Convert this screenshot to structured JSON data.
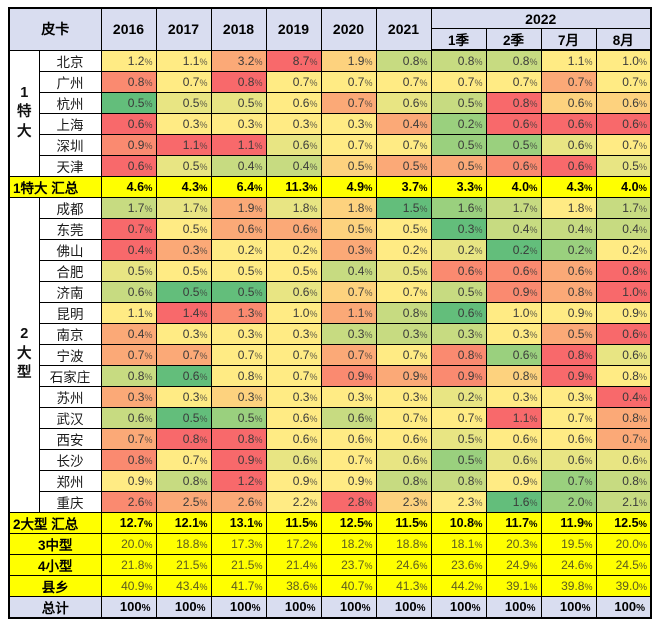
{
  "palette": {
    "r": "#F8696B",
    "o": "#FA8A70",
    "a": "#FBA977",
    "l": "#FDD27E",
    "y": "#FFEB84",
    "t": "#E8E583",
    "u": "#C7DB81",
    "v": "#9AD07E",
    "G": "#63BE7B",
    "summary_bg": "#FFFF00",
    "header_bg": "#D9DDF0",
    "data_text": "#3A3A3A",
    "mid_value_text": "#5C5C20"
  },
  "chart_data": {
    "type": "table",
    "header": {
      "corner": "皮卡",
      "years": [
        "2016",
        "2017",
        "2018",
        "2019",
        "2020",
        "2021"
      ],
      "year_group": "2022",
      "subcols": [
        "1季",
        "2季",
        "7月",
        "8月"
      ]
    },
    "groups": [
      {
        "vertical_label": "1特大",
        "cities": [
          {
            "name": "北京",
            "values": [
              "1.2%",
              "1.1%",
              "3.2%",
              "8.7%",
              "1.9%",
              "0.8%",
              "0.8%",
              "0.8%",
              "1.1%",
              "1.0%"
            ],
            "colors": "yyarluuuyy"
          },
          {
            "name": "广州",
            "values": [
              "0.8%",
              "0.7%",
              "0.8%",
              "0.7%",
              "0.7%",
              "0.7%",
              "0.7%",
              "0.7%",
              "0.7%",
              "0.7%"
            ],
            "colors": "oyryyyyyay"
          },
          {
            "name": "杭州",
            "values": [
              "0.5%",
              "0.5%",
              "0.5%",
              "0.6%",
              "0.7%",
              "0.6%",
              "0.5%",
              "0.8%",
              "0.6%",
              "0.6%"
            ],
            "colors": "Gttyaturll"
          },
          {
            "name": "上海",
            "values": [
              "0.6%",
              "0.3%",
              "0.3%",
              "0.3%",
              "0.3%",
              "0.4%",
              "0.2%",
              "0.6%",
              "0.6%",
              "0.6%"
            ],
            "colors": "ryyyyavrrr"
          },
          {
            "name": "深圳",
            "values": [
              "0.9%",
              "1.1%",
              "1.1%",
              "0.6%",
              "0.7%",
              "0.7%",
              "0.5%",
              "0.5%",
              "0.6%",
              "0.7%"
            ],
            "colors": "orrtyyvvty"
          },
          {
            "name": "天津",
            "values": [
              "0.6%",
              "0.5%",
              "0.4%",
              "0.4%",
              "0.5%",
              "0.5%",
              "0.5%",
              "0.6%",
              "0.6%",
              "0.5%"
            ],
            "colors": "rtuulaaort"
          }
        ],
        "summary": {
          "label": "1特大 汇总",
          "values": [
            "4.6%",
            "4.3%",
            "6.4%",
            "11.3%",
            "4.9%",
            "3.7%",
            "3.3%",
            "4.0%",
            "4.3%",
            "4.0%"
          ]
        }
      },
      {
        "vertical_label": "2大型",
        "cities": [
          {
            "name": "成都",
            "values": [
              "1.7%",
              "1.7%",
              "1.9%",
              "1.8%",
              "1.8%",
              "1.5%",
              "1.6%",
              "1.7%",
              "1.8%",
              "1.7%"
            ],
            "colors": "utatlGvuyu"
          },
          {
            "name": "东莞",
            "values": [
              "0.7%",
              "0.5%",
              "0.6%",
              "0.6%",
              "0.5%",
              "0.5%",
              "0.3%",
              "0.4%",
              "0.4%",
              "0.4%"
            ],
            "colors": "ryaalyGuuu"
          },
          {
            "name": "佛山",
            "values": [
              "0.4%",
              "0.3%",
              "0.2%",
              "0.2%",
              "0.3%",
              "0.2%",
              "0.2%",
              "0.2%",
              "0.2%",
              "0.2%"
            ],
            "colors": "rayyaytGvy"
          },
          {
            "name": "合肥",
            "values": [
              "0.5%",
              "0.5%",
              "0.5%",
              "0.5%",
              "0.4%",
              "0.5%",
              "0.6%",
              "0.6%",
              "0.6%",
              "0.8%"
            ],
            "colors": "tyyyutooar"
          },
          {
            "name": "济南",
            "values": [
              "0.6%",
              "0.5%",
              "0.5%",
              "0.6%",
              "0.7%",
              "0.7%",
              "0.5%",
              "0.9%",
              "0.8%",
              "1.0%"
            ],
            "colors": "uGGtlyuoar"
          },
          {
            "name": "昆明",
            "values": [
              "1.1%",
              "1.4%",
              "1.3%",
              "1.0%",
              "1.1%",
              "0.8%",
              "0.6%",
              "1.0%",
              "0.9%",
              "0.9%"
            ],
            "colors": "yroyauGyyy"
          },
          {
            "name": "南京",
            "values": [
              "0.4%",
              "0.3%",
              "0.3%",
              "0.3%",
              "0.3%",
              "0.3%",
              "0.3%",
              "0.3%",
              "0.5%",
              "0.6%"
            ],
            "colors": "ayyyuuuyar"
          },
          {
            "name": "宁波",
            "values": [
              "0.7%",
              "0.7%",
              "0.7%",
              "0.7%",
              "0.7%",
              "0.7%",
              "0.8%",
              "0.6%",
              "0.8%",
              "0.6%"
            ],
            "colors": "aayyayovrt"
          },
          {
            "name": "石家庄",
            "values": [
              "0.8%",
              "0.6%",
              "0.8%",
              "0.7%",
              "0.9%",
              "0.9%",
              "0.9%",
              "0.8%",
              "0.9%",
              "0.8%"
            ],
            "colors": "uGyyoaolry"
          },
          {
            "name": "苏州",
            "values": [
              "0.3%",
              "0.3%",
              "0.3%",
              "0.3%",
              "0.3%",
              "0.3%",
              "0.2%",
              "0.3%",
              "0.3%",
              "0.4%"
            ],
            "colors": "aylyyytyyr"
          },
          {
            "name": "武汉",
            "values": [
              "0.6%",
              "0.5%",
              "0.5%",
              "0.6%",
              "0.6%",
              "0.7%",
              "0.7%",
              "1.1%",
              "0.7%",
              "0.8%"
            ],
            "colors": "uGvyuyyrya"
          },
          {
            "name": "西安",
            "values": [
              "0.7%",
              "0.8%",
              "0.8%",
              "0.6%",
              "0.6%",
              "0.6%",
              "0.5%",
              "0.6%",
              "0.6%",
              "0.7%"
            ],
            "colors": "arryyytyya"
          },
          {
            "name": "长沙",
            "values": [
              "0.8%",
              "0.7%",
              "0.9%",
              "0.6%",
              "0.7%",
              "0.6%",
              "0.5%",
              "0.6%",
              "0.6%",
              "0.6%"
            ],
            "colors": "oyrtytvttt"
          },
          {
            "name": "郑州",
            "values": [
              "0.9%",
              "0.8%",
              "1.2%",
              "0.9%",
              "0.9%",
              "0.8%",
              "0.8%",
              "0.9%",
              "0.7%",
              "0.8%"
            ],
            "colors": "yuryyuuyvu"
          },
          {
            "name": "重庆",
            "values": [
              "2.6%",
              "2.5%",
              "2.6%",
              "2.2%",
              "2.8%",
              "2.3%",
              "2.3%",
              "1.6%",
              "2.0%",
              "2.1%"
            ],
            "colors": "oaayrlyGvu"
          }
        ],
        "summary": {
          "label": "2大型 汇总",
          "values": [
            "12.7%",
            "12.1%",
            "13.1%",
            "11.5%",
            "12.5%",
            "11.5%",
            "10.8%",
            "11.7%",
            "11.9%",
            "12.5%"
          ]
        }
      }
    ],
    "tier_rows": [
      {
        "label": "3中型",
        "values": [
          "20.0%",
          "18.8%",
          "17.3%",
          "17.2%",
          "18.2%",
          "18.8%",
          "18.1%",
          "20.3%",
          "19.5%",
          "20.0%"
        ]
      },
      {
        "label": "4小型",
        "values": [
          "21.8%",
          "21.5%",
          "21.5%",
          "21.4%",
          "23.7%",
          "24.6%",
          "23.6%",
          "24.9%",
          "24.6%",
          "24.5%"
        ]
      },
      {
        "label": "县乡",
        "values": [
          "40.9%",
          "43.4%",
          "41.7%",
          "38.6%",
          "40.7%",
          "41.3%",
          "44.2%",
          "39.1%",
          "39.8%",
          "39.0%"
        ]
      }
    ],
    "total_row": {
      "label": "总计",
      "values": [
        "100%",
        "100%",
        "100%",
        "100%",
        "100%",
        "100%",
        "100%",
        "100%",
        "100%",
        "100%"
      ]
    }
  }
}
